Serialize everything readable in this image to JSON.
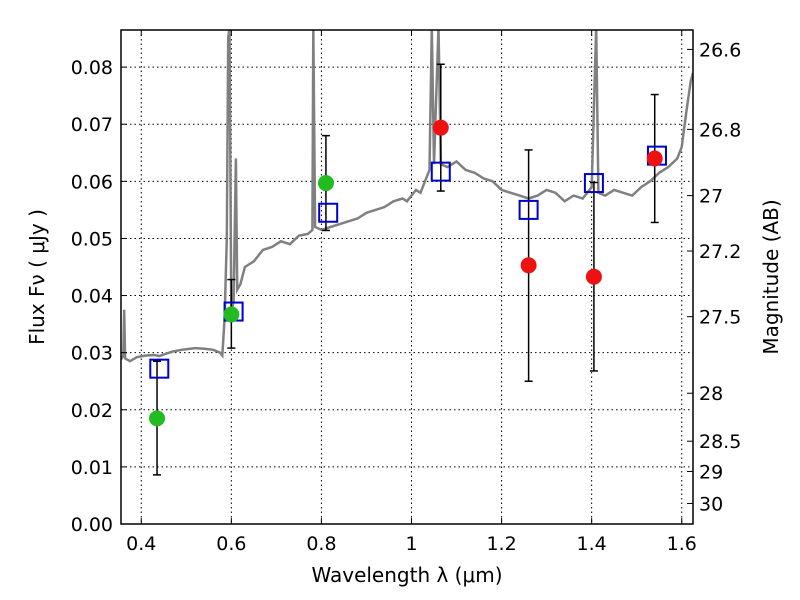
{
  "chart_data": {
    "type": "scatter",
    "xlabel": "Wavelength  λ (μm)",
    "ylabel": "Flux  Fν  ( μJy )",
    "y2label": "Magnitude (AB)",
    "xlim": [
      0.355,
      1.625
    ],
    "ylim": [
      0.0,
      0.0865
    ],
    "grid": true,
    "x_ticks": [
      {
        "value": 0.4,
        "label": "0.4"
      },
      {
        "value": 0.6,
        "label": "0.6"
      },
      {
        "value": 0.8,
        "label": "0.8"
      },
      {
        "value": 1.0,
        "label": "1"
      },
      {
        "value": 1.2,
        "label": "1.2"
      },
      {
        "value": 1.4,
        "label": "1.4"
      },
      {
        "value": 1.6,
        "label": "1.6"
      }
    ],
    "y_ticks": [
      {
        "value": 0.0,
        "label": "0.00"
      },
      {
        "value": 0.01,
        "label": "0.01"
      },
      {
        "value": 0.02,
        "label": "0.02"
      },
      {
        "value": 0.03,
        "label": "0.03"
      },
      {
        "value": 0.04,
        "label": "0.04"
      },
      {
        "value": 0.05,
        "label": "0.05"
      },
      {
        "value": 0.06,
        "label": "0.06"
      },
      {
        "value": 0.07,
        "label": "0.07"
      },
      {
        "value": 0.08,
        "label": "0.08"
      }
    ],
    "y2_ticks": [
      {
        "label": "26.6",
        "flux": 0.0831
      },
      {
        "label": "26.8",
        "flux": 0.0691
      },
      {
        "label": "27",
        "flux": 0.0575
      },
      {
        "label": "27.2",
        "flux": 0.0478
      },
      {
        "label": "27.5",
        "flux": 0.0363
      },
      {
        "label": "28",
        "flux": 0.0229
      },
      {
        "label": "28.5",
        "flux": 0.0145
      },
      {
        "label": "29",
        "flux": 0.0092
      },
      {
        "label": "30",
        "flux": 0.0036
      }
    ],
    "colors": {
      "sed": "#808080",
      "observed_green": "#22bb22",
      "observed_red": "#ee1111",
      "model_box": "#0000cc",
      "errorbar": "#000000"
    },
    "series": [
      {
        "kind": "line",
        "points": [
          [
            0.355,
            0.0288
          ],
          [
            0.36,
            0.0295
          ],
          [
            0.362,
            0.0375
          ],
          [
            0.364,
            0.029
          ],
          [
            0.375,
            0.0285
          ],
          [
            0.39,
            0.0292
          ],
          [
            0.41,
            0.0295
          ],
          [
            0.43,
            0.0296
          ],
          [
            0.44,
            0.0294
          ],
          [
            0.45,
            0.0297
          ],
          [
            0.47,
            0.0302
          ],
          [
            0.49,
            0.0305
          ],
          [
            0.5,
            0.0306
          ],
          [
            0.52,
            0.0308
          ],
          [
            0.54,
            0.0307
          ],
          [
            0.56,
            0.0305
          ],
          [
            0.575,
            0.03
          ],
          [
            0.58,
            0.0295
          ],
          [
            0.585,
            0.036
          ],
          [
            0.59,
            0.05
          ],
          [
            0.593,
            0.085
          ],
          [
            0.596,
            0.087
          ],
          [
            0.6,
            0.0372
          ],
          [
            0.605,
            0.039
          ],
          [
            0.61,
            0.064
          ],
          [
            0.613,
            0.041
          ],
          [
            0.62,
            0.042
          ],
          [
            0.63,
            0.045
          ],
          [
            0.65,
            0.046
          ],
          [
            0.67,
            0.048
          ],
          [
            0.69,
            0.0485
          ],
          [
            0.71,
            0.0495
          ],
          [
            0.73,
            0.049
          ],
          [
            0.75,
            0.0505
          ],
          [
            0.77,
            0.0508
          ],
          [
            0.78,
            0.0515
          ],
          [
            0.782,
            0.087
          ],
          [
            0.786,
            0.052
          ],
          [
            0.8,
            0.0515
          ],
          [
            0.82,
            0.052
          ],
          [
            0.84,
            0.0525
          ],
          [
            0.86,
            0.053
          ],
          [
            0.88,
            0.0535
          ],
          [
            0.9,
            0.0545
          ],
          [
            0.92,
            0.055
          ],
          [
            0.94,
            0.0555
          ],
          [
            0.96,
            0.0565
          ],
          [
            0.98,
            0.057
          ],
          [
            0.99,
            0.0565
          ],
          [
            1.0,
            0.0575
          ],
          [
            1.01,
            0.0585
          ],
          [
            1.02,
            0.058
          ],
          [
            1.03,
            0.06
          ],
          [
            1.04,
            0.062
          ],
          [
            1.045,
            0.087
          ],
          [
            1.05,
            0.063
          ],
          [
            1.06,
            0.087
          ],
          [
            1.065,
            0.063
          ],
          [
            1.08,
            0.0625
          ],
          [
            1.1,
            0.0635
          ],
          [
            1.12,
            0.062
          ],
          [
            1.14,
            0.0615
          ],
          [
            1.15,
            0.061
          ],
          [
            1.16,
            0.0605
          ],
          [
            1.18,
            0.06
          ],
          [
            1.2,
            0.0585
          ],
          [
            1.22,
            0.058
          ],
          [
            1.24,
            0.0575
          ],
          [
            1.26,
            0.057
          ],
          [
            1.28,
            0.0575
          ],
          [
            1.3,
            0.0585
          ],
          [
            1.32,
            0.058
          ],
          [
            1.34,
            0.0565
          ],
          [
            1.36,
            0.0575
          ],
          [
            1.38,
            0.057
          ],
          [
            1.4,
            0.059
          ],
          [
            1.41,
            0.087
          ],
          [
            1.415,
            0.058
          ],
          [
            1.43,
            0.0575
          ],
          [
            1.45,
            0.0585
          ],
          [
            1.47,
            0.058
          ],
          [
            1.49,
            0.0575
          ],
          [
            1.51,
            0.059
          ],
          [
            1.53,
            0.06
          ],
          [
            1.55,
            0.0615
          ],
          [
            1.57,
            0.0625
          ],
          [
            1.59,
            0.064
          ],
          [
            1.6,
            0.066
          ],
          [
            1.61,
            0.072
          ],
          [
            1.62,
            0.0775
          ],
          [
            1.625,
            0.079
          ]
        ]
      },
      {
        "kind": "model_boxes",
        "points": [
          {
            "x": 0.44,
            "y": 0.0272
          },
          {
            "x": 0.605,
            "y": 0.0372
          },
          {
            "x": 0.815,
            "y": 0.0545
          },
          {
            "x": 1.065,
            "y": 0.0617
          },
          {
            "x": 1.26,
            "y": 0.055
          },
          {
            "x": 1.405,
            "y": 0.0597
          },
          {
            "x": 1.545,
            "y": 0.0645
          }
        ]
      },
      {
        "kind": "observed",
        "points": [
          {
            "x": 0.435,
            "y": 0.0185,
            "yerr_low": 0.0086,
            "yerr_high": 0.0285,
            "color": "green"
          },
          {
            "x": 0.6,
            "y": 0.0367,
            "yerr_low": 0.0308,
            "yerr_high": 0.0428,
            "color": "green"
          },
          {
            "x": 0.81,
            "y": 0.0597,
            "yerr_low": 0.0514,
            "yerr_high": 0.068,
            "color": "green"
          },
          {
            "x": 1.065,
            "y": 0.0694,
            "yerr_low": 0.0583,
            "yerr_high": 0.0805,
            "color": "red"
          },
          {
            "x": 1.26,
            "y": 0.0453,
            "yerr_low": 0.025,
            "yerr_high": 0.0655,
            "color": "red"
          },
          {
            "x": 1.405,
            "y": 0.0433,
            "yerr_low": 0.0268,
            "yerr_high": 0.0598,
            "color": "red"
          },
          {
            "x": 1.54,
            "y": 0.064,
            "yerr_low": 0.0528,
            "yerr_high": 0.0752,
            "color": "red"
          }
        ]
      }
    ]
  }
}
